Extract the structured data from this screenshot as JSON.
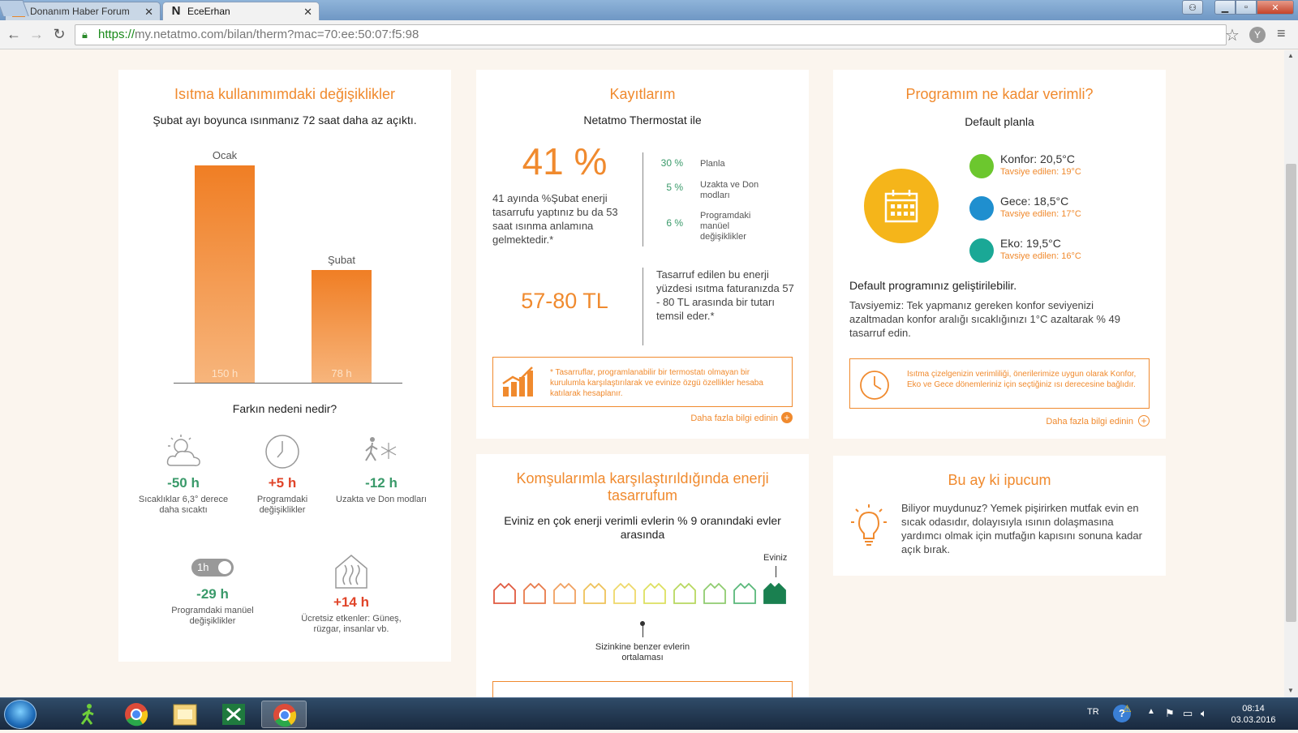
{
  "browser": {
    "tabs": [
      {
        "label": "Donanım Haber Forum",
        "icon": "dh-favicon"
      },
      {
        "label": "EceErhan",
        "icon": "netatmo-favicon"
      }
    ],
    "url_https": "https://",
    "url_rest": "my.netatmo.com/bilan/therm?mac=70:ee:50:07:f5:98",
    "profile_letter": "Y"
  },
  "heating": {
    "title": "Isıtma kullanımımdaki değişiklikler",
    "subtitle": "Şubat ayı boyunca ısınmanız 72 saat daha az açıktı.",
    "bars": [
      {
        "label": "Ocak",
        "value": 150,
        "value_label": "150 h"
      },
      {
        "label": "Şubat",
        "value": 78,
        "value_label": "78 h"
      }
    ],
    "reason_title": "Farkın nedeni nedir?",
    "stats": [
      {
        "value": "-50 h",
        "desc": "Sıcaklıklar 6,3° derece daha sıcaktı",
        "icon": "sun-cloud-icon"
      },
      {
        "value": "+5 h",
        "desc": "Programdaki değişiklikler",
        "icon": "clock-icon"
      },
      {
        "value": "-12 h",
        "desc": "Uzakta ve Don modları",
        "icon": "away-frost-icon"
      },
      {
        "value": "-29 h",
        "desc": "Programdaki manüel değişiklikler",
        "icon": "toggle-icon"
      },
      {
        "value": "+14 h",
        "desc": "Ücretsiz etkenler: Güneş, rüzgar, insanlar vb.",
        "icon": "house-heat-icon"
      }
    ],
    "toggle_label": "1h"
  },
  "savings": {
    "title": "Kayıtlarım",
    "subtitle": "Netatmo Thermostat ile",
    "big_pct": "41 %",
    "desc": "41 ayında %Şubat enerji tasarrufu yaptınız bu da 53 saat ısınma anlamına gelmektedir.*",
    "breakdown": [
      {
        "pct": "30 %",
        "label": "Planla"
      },
      {
        "pct": "5 %",
        "label": "Uzakta ve Don modları"
      },
      {
        "pct": "6 %",
        "label": "Programdaki manüel değişiklikler"
      }
    ],
    "money": "57-80 TL",
    "money_desc": "Tasarruf edilen bu enerji yüzdesi ısıtma faturanızda 57 - 80 TL arasında bir tutarı temsil eder.*",
    "note": "* Tasarruflar, programlanabilir bir termostatı olmayan bir kurulumla karşılaştırılarak ve evinize özgü özellikler hesaba katılarak hesaplanır.",
    "more": "Daha fazla bilgi edinin"
  },
  "program": {
    "title": "Programım ne kadar verimli?",
    "plan": "Default planla",
    "modes": [
      {
        "name": "Konfor: 20,5°C",
        "rec": "Tavsiye edilen: 19°C",
        "color": "#6cc72e"
      },
      {
        "name": "Gece: 18,5°C",
        "rec": "Tavsiye edilen: 17°C",
        "color": "#1f8fcf"
      },
      {
        "name": "Eko: 19,5°C",
        "rec": "Tavsiye edilen: 16°C",
        "color": "#1aa896"
      }
    ],
    "improve": "Default programınız geliştirilebilir.",
    "advice": "Tavsiyemiz: Tek yapmanız gereken konfor seviyenizi azaltmadan konfor aralığı sıcaklığınızı 1°C azaltarak % 49 tasarruf edin.",
    "note": "Isıtma çizelgenizin verimliliği, önerilerimize uygun olarak Konfor, Eko ve Gece dönemleriniz için seçtiğiniz ısı derecesine bağlıdır.",
    "more": "Daha fazla bilgi edinin"
  },
  "neighbors": {
    "title": "Komşularımla karşılaştırıldığında enerji tasarrufum",
    "desc": "Eviniz en çok enerji verimli evlerin % 9 oranındaki evler arasında",
    "yours": "Eviniz",
    "avg": "Sizinkine benzer evlerin ortalaması",
    "house_colors": [
      "#e05a40",
      "#e87a4a",
      "#f0a060",
      "#eec25a",
      "#eed86a",
      "#dde060",
      "#b8d860",
      "#90cc70",
      "#5ab87a",
      "#1a8050"
    ]
  },
  "tip": {
    "title": "Bu ay ki ipucum",
    "text": "Biliyor muydunuz? Yemek pişirirken mutfak evin en sıcak odasıdır, dolayısıyla ısının dolaşmasına yardımcı olmak için mutfağın kapısını sonuna kadar açık bırak."
  },
  "taskbar": {
    "lang": "TR",
    "time": "08:14",
    "date": "03.03.2016"
  },
  "colors": {
    "accent": "#f08a2e",
    "positive": "#3a9a6a",
    "negative": "#e0452a"
  }
}
